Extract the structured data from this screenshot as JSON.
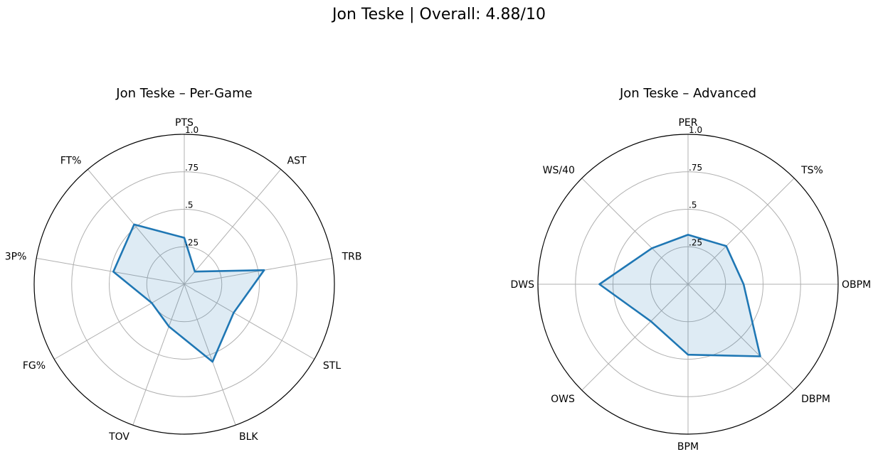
{
  "figure": {
    "title": "Jon Teske | Overall: 4.88/10"
  },
  "colors": {
    "series_line": "#1f77b4",
    "series_fill": "#1f77b4",
    "grid": "#b0b0b0",
    "frame": "#000000"
  },
  "chart_data": [
    {
      "type": "radar",
      "title": "Jon Teske – Per-Game",
      "categories": [
        "PTS",
        "AST",
        "TRB",
        "STL",
        "BLK",
        "TOV",
        "FG%",
        "3P%",
        "FT%"
      ],
      "radial_ticks": [
        0.25,
        0.5,
        0.75,
        1.0
      ],
      "radial_tick_labels": [
        ".25",
        ".5",
        ".75",
        "1.0"
      ],
      "rlim": [
        0,
        1
      ],
      "grid": true,
      "series": [
        {
          "values": [
            0.31,
            0.11,
            0.54,
            0.38,
            0.55,
            0.3,
            0.25,
            0.48,
            0.52
          ]
        }
      ]
    },
    {
      "type": "radar",
      "title": "Jon Teske – Advanced",
      "categories": [
        "PER",
        "TS%",
        "OBPM",
        "DBPM",
        "BPM",
        "OWS",
        "DWS",
        "WS/40"
      ],
      "radial_ticks": [
        0.25,
        0.5,
        0.75,
        1.0
      ],
      "radial_tick_labels": [
        ".25",
        ".5",
        ".75",
        "1.0"
      ],
      "rlim": [
        0,
        1
      ],
      "grid": true,
      "series": [
        {
          "values": [
            0.33,
            0.36,
            0.37,
            0.68,
            0.47,
            0.35,
            0.59,
            0.34
          ]
        }
      ]
    }
  ]
}
